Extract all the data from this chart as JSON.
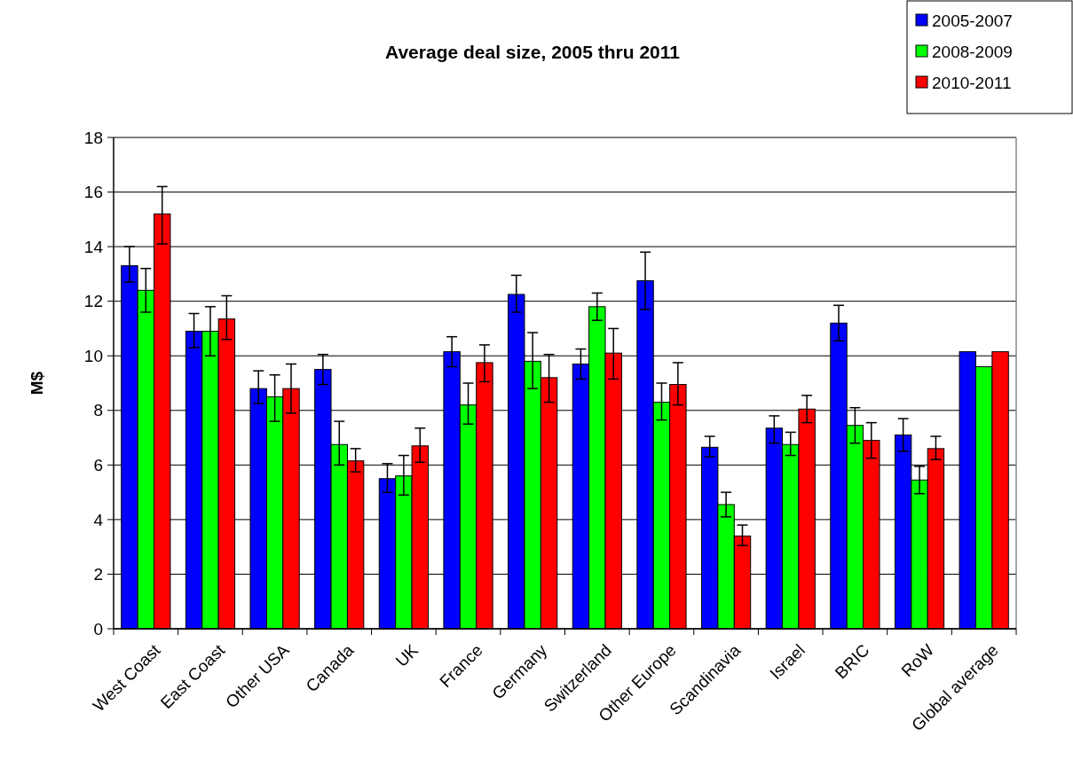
{
  "chart_data": {
    "type": "bar",
    "title": "Average deal size, 2005 thru 2011",
    "ylabel": "M$",
    "categories": [
      "West Coast",
      "East Coast",
      "Other USA",
      "Canada",
      "UK",
      "France",
      "Germany",
      "Switzerland",
      "Other Europe",
      "Scandinavia",
      "Israel",
      "BRIC",
      "RoW",
      "Global average"
    ],
    "series": [
      {
        "name": "2005-2007",
        "color": "#0000ff",
        "values": [
          13.3,
          10.9,
          8.8,
          9.5,
          5.5,
          10.15,
          12.25,
          9.7,
          12.75,
          6.65,
          7.35,
          11.2,
          7.1,
          10.15
        ],
        "errors": [
          [
            12.7,
            14.0
          ],
          [
            10.3,
            11.55
          ],
          [
            8.25,
            9.45
          ],
          [
            8.95,
            10.05
          ],
          [
            5.0,
            6.05
          ],
          [
            9.6,
            10.7
          ],
          [
            11.6,
            12.95
          ],
          [
            9.15,
            10.25
          ],
          [
            11.7,
            13.8
          ],
          [
            6.3,
            7.05
          ],
          [
            6.8,
            7.8
          ],
          [
            10.55,
            11.85
          ],
          [
            6.5,
            7.7
          ],
          null
        ]
      },
      {
        "name": "2008-2009",
        "color": "#00ff00",
        "values": [
          12.4,
          10.9,
          8.5,
          6.75,
          5.6,
          8.2,
          9.8,
          11.8,
          8.3,
          4.55,
          6.75,
          7.45,
          5.45,
          9.6
        ],
        "errors": [
          [
            11.6,
            13.2
          ],
          [
            10.0,
            11.8
          ],
          [
            7.6,
            9.3
          ],
          [
            6.0,
            7.6
          ],
          [
            4.9,
            6.35
          ],
          [
            7.5,
            9.0
          ],
          [
            8.8,
            10.85
          ],
          [
            11.3,
            12.3
          ],
          [
            7.65,
            9.0
          ],
          [
            4.1,
            5.0
          ],
          [
            6.35,
            7.2
          ],
          [
            6.8,
            8.1
          ],
          [
            4.95,
            5.95
          ],
          null
        ]
      },
      {
        "name": "2010-2011",
        "color": "#ff0000",
        "values": [
          15.2,
          11.35,
          8.8,
          6.15,
          6.7,
          9.75,
          9.2,
          10.1,
          8.95,
          3.4,
          8.05,
          6.9,
          6.6,
          10.15
        ],
        "errors": [
          [
            14.1,
            16.2
          ],
          [
            10.6,
            12.2
          ],
          [
            7.9,
            9.7
          ],
          [
            5.75,
            6.6
          ],
          [
            6.1,
            7.35
          ],
          [
            9.05,
            10.4
          ],
          [
            8.3,
            10.05
          ],
          [
            9.15,
            11.0
          ],
          [
            8.2,
            9.75
          ],
          [
            3.05,
            3.8
          ],
          [
            7.55,
            8.55
          ],
          [
            6.25,
            7.55
          ],
          [
            6.2,
            7.05
          ],
          null
        ]
      }
    ],
    "ylim": [
      0,
      18
    ],
    "yticks": [
      0,
      2,
      4,
      6,
      8,
      10,
      12,
      14,
      16,
      18
    ],
    "grid": "y",
    "legend": "top right"
  }
}
